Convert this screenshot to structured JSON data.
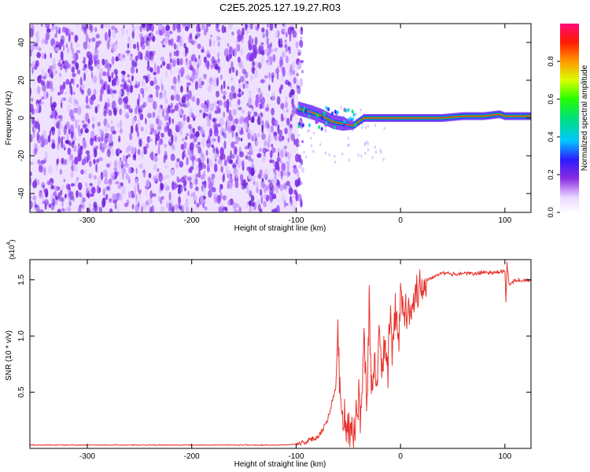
{
  "title": "C2E5.2025.127.19.27.R03",
  "chart_data": [
    {
      "type": "heatmap",
      "xlabel": "Height of straight line (km)",
      "ylabel": "Frequency (Hz)",
      "xlim": [
        -355,
        125
      ],
      "ylim": [
        -50,
        50
      ],
      "xticks": [
        -300,
        -200,
        -100,
        0,
        100
      ],
      "xtick_labels": [
        "-300",
        "-200",
        "-100",
        "0",
        "100"
      ],
      "yticks": [
        -40,
        -20,
        0,
        20,
        40
      ],
      "ytick_labels": [
        "-40",
        "-20",
        "0",
        "20",
        "40"
      ],
      "colorbar": {
        "label": "Normalized spectral amplitude",
        "range": [
          0,
          1
        ],
        "ticks": [
          0.0,
          0.2,
          0.4,
          0.6,
          0.8
        ],
        "tick_labels": [
          "0.0",
          "0.2",
          "0.4",
          "0.6",
          "0.8"
        ]
      },
      "regions": [
        {
          "x": [
            -355,
            -98
          ],
          "frequency": [
            -50,
            50
          ],
          "amplitude": 0.12
        },
        {
          "x": [
            -98,
            -45
          ],
          "frequency": [
            -8,
            6
          ],
          "amplitude": 0.4
        },
        {
          "x": [
            -45,
            125
          ],
          "frequency": [
            -2,
            2
          ],
          "amplitude": 0.8
        }
      ],
      "ridge": [
        {
          "x": -98,
          "y": 5
        },
        {
          "x": -85,
          "y": 3
        },
        {
          "x": -75,
          "y": 1
        },
        {
          "x": -65,
          "y": -2
        },
        {
          "x": -55,
          "y": -3
        },
        {
          "x": -45,
          "y": -4
        },
        {
          "x": -35,
          "y": 0
        },
        {
          "x": -20,
          "y": 0
        },
        {
          "x": 0,
          "y": 0
        },
        {
          "x": 20,
          "y": 0
        },
        {
          "x": 40,
          "y": 0
        },
        {
          "x": 60,
          "y": 1
        },
        {
          "x": 80,
          "y": 1
        },
        {
          "x": 95,
          "y": 2
        },
        {
          "x": 100,
          "y": 1
        },
        {
          "x": 110,
          "y": 1
        },
        {
          "x": 125,
          "y": 1
        }
      ],
      "grid": false
    },
    {
      "type": "line",
      "xlabel": "Height of straight line (km)",
      "ylabel": "SNR (10 * v/v)",
      "yscale_label": "(x10",
      "yscale_exp": "4",
      "yscale_close": ")",
      "xlim": [
        -355,
        125
      ],
      "ylim": [
        0,
        1.68
      ],
      "xticks": [
        -300,
        -200,
        -100,
        0,
        100
      ],
      "xtick_labels": [
        "-300",
        "-200",
        "-100",
        "0",
        "100"
      ],
      "yticks": [
        0.5,
        1.0,
        1.5
      ],
      "ytick_labels": [
        "0.5",
        "1.0",
        "1.5"
      ],
      "color": "#e8322d",
      "series": [
        {
          "x": [
            -355,
            -110,
            -100,
            -90,
            -80,
            -75,
            -70,
            -66,
            -62,
            -60,
            -58,
            -56,
            -54,
            -52,
            -50,
            -48,
            -46,
            -44,
            -42,
            -40,
            -38,
            -35,
            -32,
            -30,
            -28,
            -25,
            -22,
            -20,
            -18,
            -15,
            -12,
            -10,
            -8,
            -5,
            -2,
            0,
            5,
            10,
            15,
            20,
            25,
            30,
            35,
            40,
            50,
            60,
            70,
            80,
            90,
            100,
            101,
            102,
            104,
            110,
            125
          ],
          "y": [
            0.03,
            0.03,
            0.04,
            0.06,
            0.1,
            0.16,
            0.25,
            0.4,
            0.55,
            1.05,
            0.5,
            0.35,
            0.3,
            0.22,
            0.15,
            0.12,
            0.1,
            0.18,
            0.35,
            0.45,
            0.25,
            0.95,
            0.4,
            1.3,
            0.5,
            0.85,
            0.55,
            1.2,
            0.6,
            0.95,
            0.7,
            1.2,
            0.8,
            1.25,
            0.9,
            1.35,
            1.2,
            1.3,
            1.38,
            1.45,
            1.5,
            1.52,
            1.55,
            1.56,
            1.55,
            1.56,
            1.55,
            1.57,
            1.56,
            1.58,
            1.3,
            1.65,
            1.45,
            1.5,
            1.49
          ]
        }
      ],
      "grid": false
    }
  ]
}
